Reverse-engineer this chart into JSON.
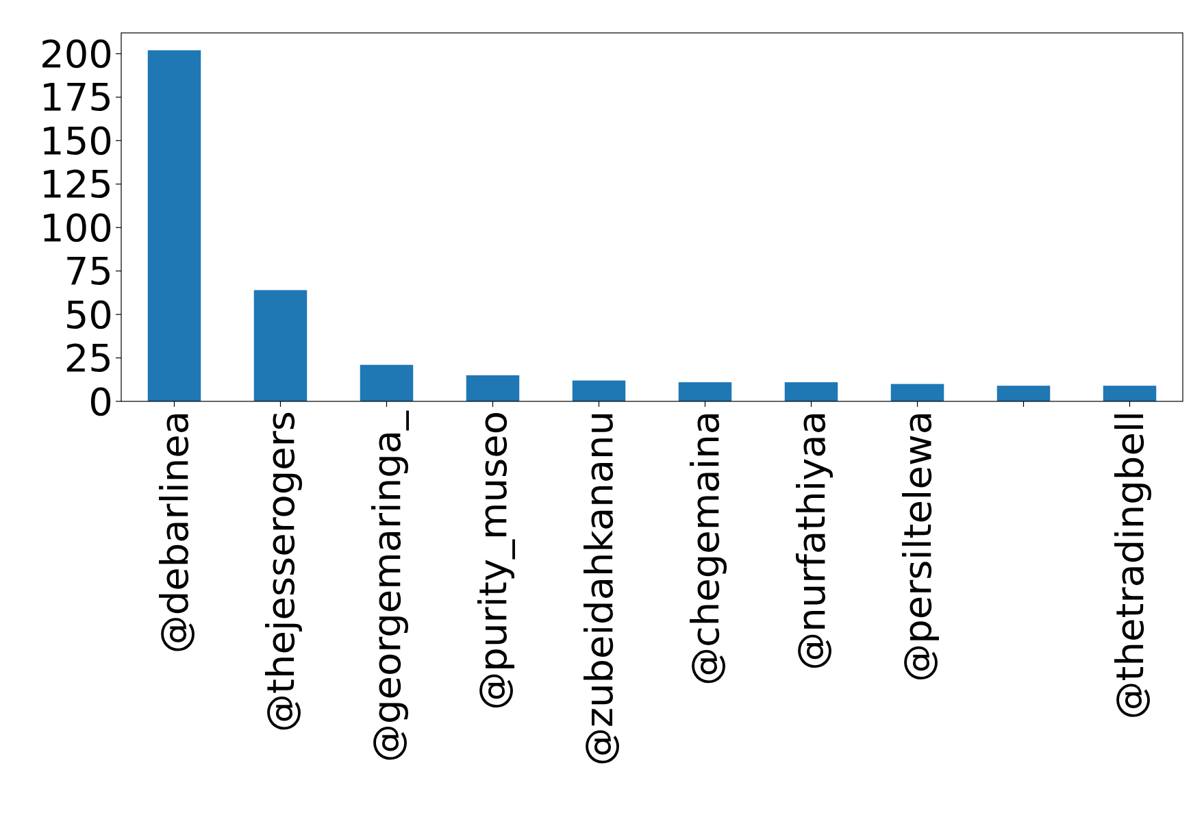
{
  "chart_data": {
    "type": "bar",
    "categories": [
      "@debarlinea",
      "@thejesserogers",
      "@georgemaringa_",
      "@purity_museo",
      "@zubeidahkananu",
      "@chegemaina",
      "@nurfathiyaa",
      "@persiltelewa",
      null,
      "@thetradingbell"
    ],
    "values": [
      202,
      64,
      21,
      15,
      12,
      11,
      11,
      10,
      9,
      9
    ],
    "color": "#1f77b4",
    "ylim": [
      0,
      212
    ],
    "yticks": [
      0,
      25,
      50,
      75,
      100,
      125,
      150,
      175,
      200
    ],
    "grid": false
  }
}
